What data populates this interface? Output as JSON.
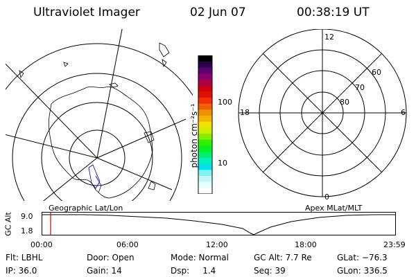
{
  "header": {
    "title": "Ultraviolet Imager",
    "date": "02 Jun 07",
    "time": "00:38:19 UT"
  },
  "left_panel": {
    "label": "Geographic Lat/Lon"
  },
  "right_panel": {
    "label": "Apex MLat/MLT",
    "mlt_labels": [
      "12",
      "18",
      "6",
      "0"
    ],
    "mlat_labels": [
      "60",
      "70",
      "80"
    ]
  },
  "colorbar": {
    "unit_label": "photon cm⁻²s⁻¹",
    "ticks": [
      "100",
      "10"
    ],
    "colors": [
      "#000000",
      "#2a0050",
      "#5a0070",
      "#8a006a",
      "#b00040",
      "#d00010",
      "#e01000",
      "#f03000",
      "#f06000",
      "#f09000",
      "#f0b800",
      "#f0e000",
      "#c8f000",
      "#80f000",
      "#30f000",
      "#00f020",
      "#00f070",
      "#00f0c0",
      "#00e0f0",
      "#80f0f0",
      "#c0f8f8",
      "#e8fcfc",
      "#ffffff"
    ]
  },
  "timeline": {
    "ylabel": "GC Alt",
    "yticks": [
      "9.0",
      "1.8"
    ],
    "xticks": [
      "00:00",
      "06:00",
      "12:00",
      "18:00",
      "23:59"
    ]
  },
  "info": {
    "filter": "Flt: LBHL",
    "ip": "IP: 36.0",
    "door": "Door: Open",
    "gain": "Gain: 14",
    "mode": "Mode: Normal",
    "dsp": "Dsp:     1.4",
    "gc_alt": "GC Alt: 7.7 Re",
    "seq": "Seq: 39",
    "glat": "GLat: −76.3",
    "glon": "GLon: 336.5"
  }
}
